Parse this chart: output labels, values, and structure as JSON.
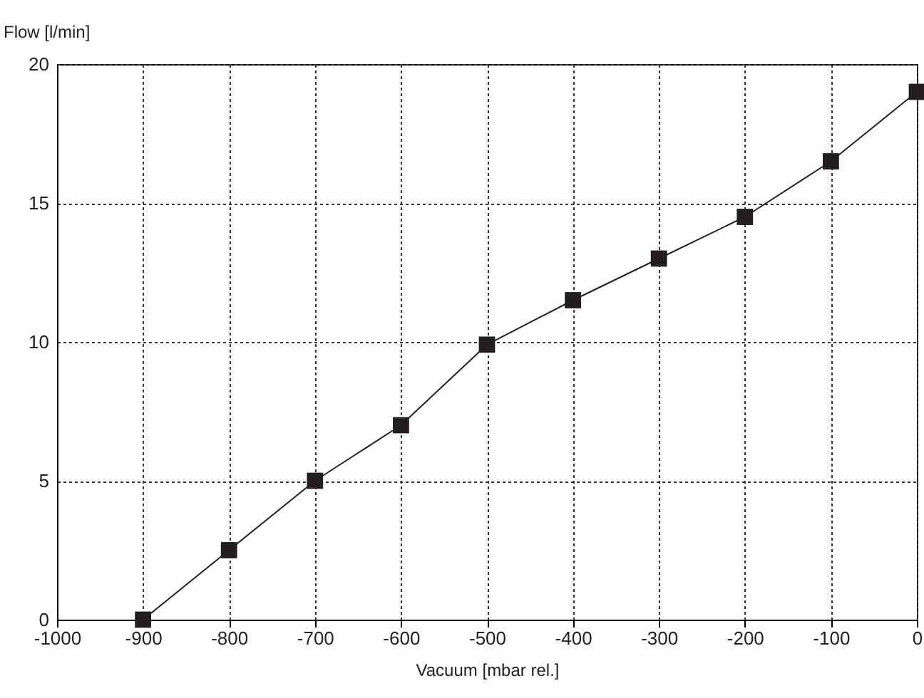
{
  "chart_data": {
    "type": "line",
    "xlabel": "Vacuum [mbar rel.]",
    "ylabel": "Flow [l/min]",
    "x": [
      -900,
      -800,
      -700,
      -600,
      -500,
      -400,
      -300,
      -200,
      -100,
      0
    ],
    "series": [
      {
        "color": "#231f20",
        "values": [
          0,
          2.5,
          5,
          7,
          9.9,
          11.5,
          13,
          14.5,
          16.5,
          19
        ]
      }
    ],
    "xlim": [
      -1000,
      0
    ],
    "xticks": [
      -1000,
      -900,
      -800,
      -700,
      -600,
      -500,
      -400,
      -300,
      -200,
      -100,
      0
    ],
    "ylim": [
      0,
      20
    ],
    "yticks": [
      0,
      5,
      10,
      15,
      20
    ],
    "grid": true,
    "marker": "square",
    "line_style": "solid"
  }
}
